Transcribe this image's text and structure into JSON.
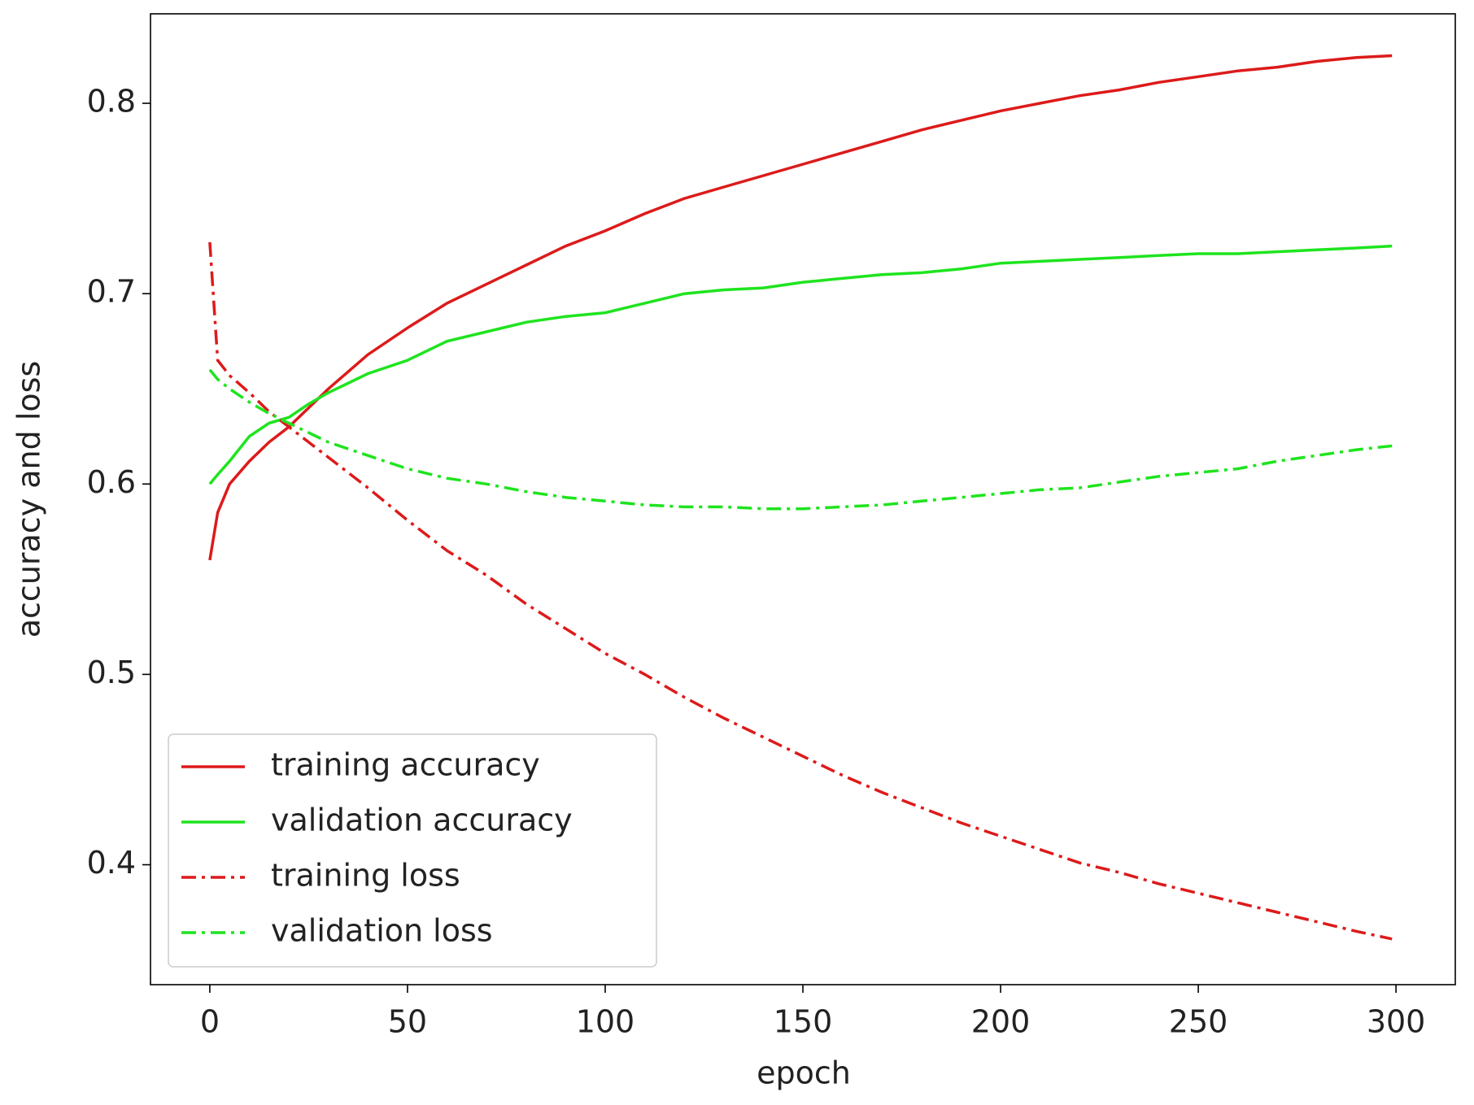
{
  "chart_data": {
    "type": "line",
    "xlabel": "epoch",
    "ylabel": "accuracy and loss",
    "x": [
      0,
      2,
      5,
      10,
      15,
      20,
      25,
      30,
      40,
      50,
      60,
      70,
      80,
      90,
      100,
      110,
      120,
      130,
      140,
      150,
      160,
      170,
      180,
      190,
      200,
      210,
      220,
      230,
      240,
      250,
      260,
      270,
      280,
      290,
      299
    ],
    "series": [
      {
        "name": "training accuracy",
        "color": "#dd1a1a",
        "linestyle": "solid",
        "values": [
          0.56,
          0.585,
          0.6,
          0.612,
          0.622,
          0.63,
          0.64,
          0.65,
          0.668,
          0.682,
          0.695,
          0.705,
          0.715,
          0.725,
          0.733,
          0.742,
          0.75,
          0.756,
          0.762,
          0.768,
          0.774,
          0.78,
          0.786,
          0.791,
          0.796,
          0.8,
          0.804,
          0.807,
          0.811,
          0.814,
          0.817,
          0.819,
          0.822,
          0.824,
          0.825
        ]
      },
      {
        "name": "validation accuracy",
        "color": "#1ee41e",
        "linestyle": "solid",
        "values": [
          0.6,
          0.605,
          0.612,
          0.625,
          0.632,
          0.635,
          0.642,
          0.648,
          0.658,
          0.665,
          0.675,
          0.68,
          0.685,
          0.688,
          0.69,
          0.695,
          0.7,
          0.702,
          0.703,
          0.706,
          0.708,
          0.71,
          0.711,
          0.713,
          0.716,
          0.717,
          0.718,
          0.719,
          0.72,
          0.721,
          0.721,
          0.722,
          0.723,
          0.724,
          0.725
        ]
      },
      {
        "name": "training loss",
        "color": "#dd1a1a",
        "linestyle": "dashdot",
        "values": [
          0.727,
          0.665,
          0.657,
          0.648,
          0.638,
          0.63,
          0.622,
          0.614,
          0.598,
          0.581,
          0.565,
          0.552,
          0.537,
          0.524,
          0.511,
          0.5,
          0.488,
          0.477,
          0.467,
          0.457,
          0.447,
          0.438,
          0.43,
          0.422,
          0.415,
          0.408,
          0.401,
          0.396,
          0.39,
          0.385,
          0.38,
          0.375,
          0.37,
          0.365,
          0.361
        ]
      },
      {
        "name": "validation loss",
        "color": "#1ee41e",
        "linestyle": "dashdot",
        "values": [
          0.66,
          0.655,
          0.65,
          0.643,
          0.637,
          0.632,
          0.627,
          0.622,
          0.615,
          0.608,
          0.603,
          0.6,
          0.596,
          0.593,
          0.591,
          0.589,
          0.588,
          0.588,
          0.587,
          0.587,
          0.588,
          0.589,
          0.591,
          0.593,
          0.595,
          0.597,
          0.598,
          0.601,
          0.604,
          0.606,
          0.608,
          0.612,
          0.615,
          0.618,
          0.62
        ]
      }
    ],
    "xlim": [
      -15,
      315
    ],
    "xticks": [
      0,
      50,
      100,
      150,
      200,
      250,
      300
    ],
    "ylim": [
      0.337,
      0.847
    ],
    "yticks": [
      0.4,
      0.5,
      0.6,
      0.7,
      0.8
    ],
    "grid": false,
    "legend": "lower left"
  }
}
